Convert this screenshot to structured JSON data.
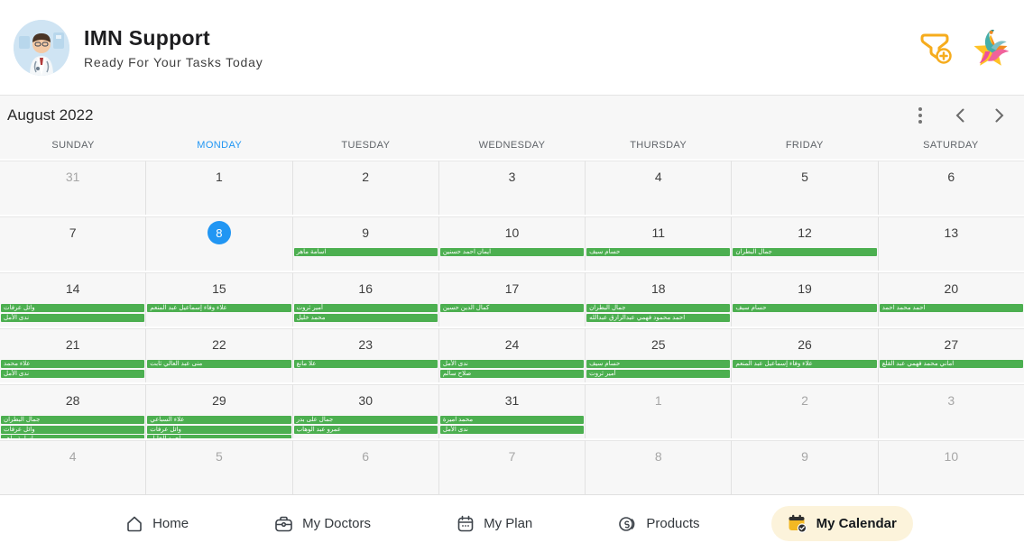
{
  "header": {
    "title": "IMN Support",
    "subtitle": "Ready For Your Tasks Today",
    "avatar": "doctor-cartoon-avatar",
    "actions": [
      {
        "id": "add-filter",
        "icon": "funnel-plus-icon"
      },
      {
        "id": "brand-logo",
        "icon": "star-figure-logo"
      }
    ]
  },
  "calendar": {
    "month_title": "August 2022",
    "selected_day": 8,
    "dow": [
      "SUNDAY",
      "MONDAY",
      "TUESDAY",
      "WEDNESDAY",
      "THURSDAY",
      "FRIDAY",
      "SATURDAY"
    ],
    "highlighted_dow_index": 1,
    "weeks": [
      [
        {
          "n": 31,
          "out": true
        },
        {
          "n": 1
        },
        {
          "n": 2
        },
        {
          "n": 3
        },
        {
          "n": 4
        },
        {
          "n": 5
        },
        {
          "n": 6
        }
      ],
      [
        {
          "n": 7
        },
        {
          "n": 8,
          "selected": true
        },
        {
          "n": 9,
          "events": [
            "اسامة ماهر"
          ]
        },
        {
          "n": 10,
          "events": [
            "ايمان احمد حسنين"
          ]
        },
        {
          "n": 11,
          "events": [
            "حسام سيف"
          ]
        },
        {
          "n": 12,
          "events": [
            "جمال البطران"
          ]
        },
        {
          "n": 13
        }
      ],
      [
        {
          "n": 14,
          "events": [
            "وائل عرفات",
            "ندى الأمل"
          ],
          "more": true
        },
        {
          "n": 15,
          "events": [
            "علاء وفاء إسماعيل عبد المنعم"
          ]
        },
        {
          "n": 16,
          "events": [
            "أمير ثروت",
            "محمد خليل"
          ]
        },
        {
          "n": 17,
          "events": [
            "كمال الدين حسين"
          ]
        },
        {
          "n": 18,
          "events": [
            "جمال البطران",
            "احمد محمود فهمي عبدالرازق عبدالله"
          ]
        },
        {
          "n": 19,
          "events": [
            "حسام سيف"
          ]
        },
        {
          "n": 20,
          "events": [
            "احمد محمد احمد"
          ]
        }
      ],
      [
        {
          "n": 21,
          "events": [
            "علاء محمد",
            "ندى الأمل"
          ]
        },
        {
          "n": 22,
          "events": [
            "منى عبد العالي ثابت"
          ]
        },
        {
          "n": 23,
          "events": [
            "علا مانع"
          ]
        },
        {
          "n": 24,
          "events": [
            "ندى الأمل",
            "صلاح سالم"
          ]
        },
        {
          "n": 25,
          "events": [
            "حسام سيف",
            "أمير ثروت"
          ]
        },
        {
          "n": 26,
          "events": [
            "علاء وفاء إسماعيل عبد المنعم"
          ]
        },
        {
          "n": 27,
          "events": [
            "اماني محمد فهمي عبد القلع"
          ]
        }
      ],
      [
        {
          "n": 28,
          "events": [
            "جمال البطران",
            "وائل عرفات",
            "اسامة ماهر"
          ]
        },
        {
          "n": 29,
          "events": [
            "علاء السباعي",
            "وائل عرفات",
            "احمد الخليل"
          ]
        },
        {
          "n": 30,
          "events": [
            "جمال على بدر",
            "عمرو عبد الوهاب"
          ]
        },
        {
          "n": 31,
          "events": [
            "محمد اميرة",
            "ندى الأمل"
          ]
        },
        {
          "n": 1,
          "out": true
        },
        {
          "n": 2,
          "out": true
        },
        {
          "n": 3,
          "out": true
        }
      ],
      [
        {
          "n": 4,
          "out": true
        },
        {
          "n": 5,
          "out": true
        },
        {
          "n": 6,
          "out": true
        },
        {
          "n": 7,
          "out": true
        },
        {
          "n": 8,
          "out": true
        },
        {
          "n": 9,
          "out": true
        },
        {
          "n": 10,
          "out": true
        }
      ]
    ],
    "controls": {
      "menu": "kebab-menu",
      "prev": "previous-month",
      "next": "next-month"
    }
  },
  "nav": {
    "active": "my-calendar",
    "items": [
      {
        "id": "home",
        "label": "Home",
        "icon": "home-icon"
      },
      {
        "id": "my-doctors",
        "label": "My Doctors",
        "icon": "medical-bag-icon"
      },
      {
        "id": "my-plan",
        "label": "My Plan",
        "icon": "calendar-outline-icon"
      },
      {
        "id": "products",
        "label": "Products",
        "icon": "products-icon"
      },
      {
        "id": "my-calendar",
        "label": "My Calendar",
        "icon": "calendar-check-icon"
      }
    ]
  },
  "colors": {
    "accent_blue": "#2196F3",
    "event_green": "#4CAF50",
    "active_pill": "#FCF3DB",
    "icon_amber": "#F6AC1D"
  }
}
